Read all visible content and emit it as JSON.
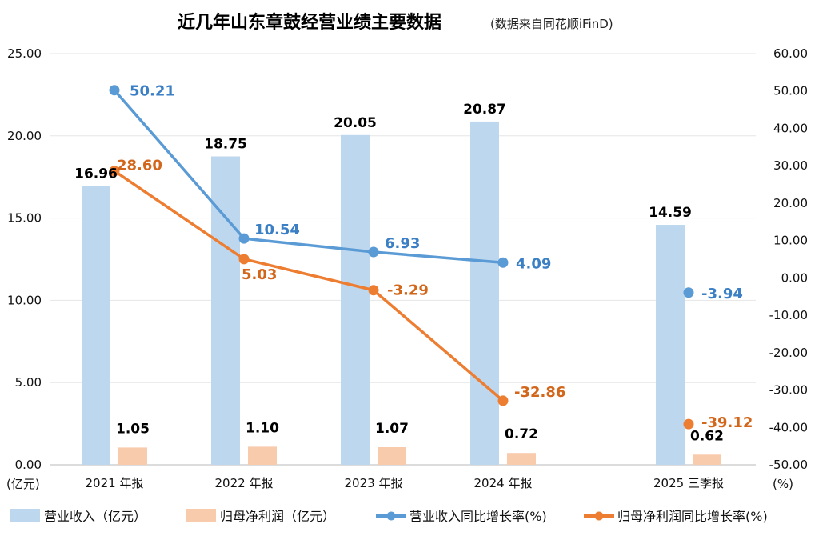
{
  "chart_data": {
    "type": "bar+line",
    "title": "近几年山东章鼓经营业绩主要数据",
    "subtitle": "(数据来自同花顺iFinD)",
    "categories": [
      "2021 年报",
      "2022 年报",
      "2023 年报",
      "2024 年报",
      "2025 三季报"
    ],
    "left_axis": {
      "unit_label": "(亿元)",
      "ylim": [
        0,
        25
      ],
      "ticks": [
        "0.00",
        "5.00",
        "10.00",
        "15.00",
        "20.00",
        "25.00"
      ],
      "tick_values": [
        0,
        5,
        10,
        15,
        20,
        25
      ]
    },
    "right_axis": {
      "unit_label": "(%)",
      "ylim": [
        -50,
        60
      ],
      "ticks": [
        "-50.00",
        "-40.00",
        "-30.00",
        "-20.00",
        "-10.00",
        "0.00",
        "10.00",
        "20.00",
        "30.00",
        "40.00",
        "50.00",
        "60.00"
      ],
      "tick_values": [
        -50,
        -40,
        -30,
        -20,
        -10,
        0,
        10,
        20,
        30,
        40,
        50,
        60
      ]
    },
    "grid": true,
    "legend_position": "bottom",
    "series": [
      {
        "name": "营业收入（亿元）",
        "kind": "bar",
        "axis": "left",
        "color": "#bdd7ee",
        "values": [
          16.96,
          18.75,
          20.05,
          20.87,
          14.59
        ],
        "labels": [
          "16.96",
          "18.75",
          "20.05",
          "20.87",
          "14.59"
        ]
      },
      {
        "name": "归母净利润（亿元）",
        "kind": "bar",
        "axis": "left",
        "color": "#f8cbad",
        "values": [
          1.05,
          1.1,
          1.07,
          0.72,
          0.62
        ],
        "labels": [
          "1.05",
          "1.10",
          "1.07",
          "0.72",
          "0.62"
        ]
      },
      {
        "name": "营业收入同比增长率(%)",
        "kind": "line",
        "axis": "right",
        "color": "#5b9bd5",
        "label_color": "#3b7fc4",
        "values": [
          50.21,
          10.54,
          6.93,
          4.09,
          -3.94
        ],
        "labels": [
          "50.21",
          "10.54",
          "6.93",
          "4.09",
          "-3.94"
        ],
        "connected": [
          true,
          true,
          true,
          true,
          false
        ]
      },
      {
        "name": "归母净利润同比增长率(%)",
        "kind": "line",
        "axis": "right",
        "color": "#ed7d31",
        "label_color": "#d2661b",
        "values": [
          28.6,
          5.03,
          -3.29,
          -32.86,
          -39.12
        ],
        "labels": [
          "28.60",
          "5.03",
          "-3.29",
          "-32.86",
          "-39.12"
        ],
        "connected": [
          true,
          true,
          true,
          true,
          false
        ]
      }
    ]
  }
}
